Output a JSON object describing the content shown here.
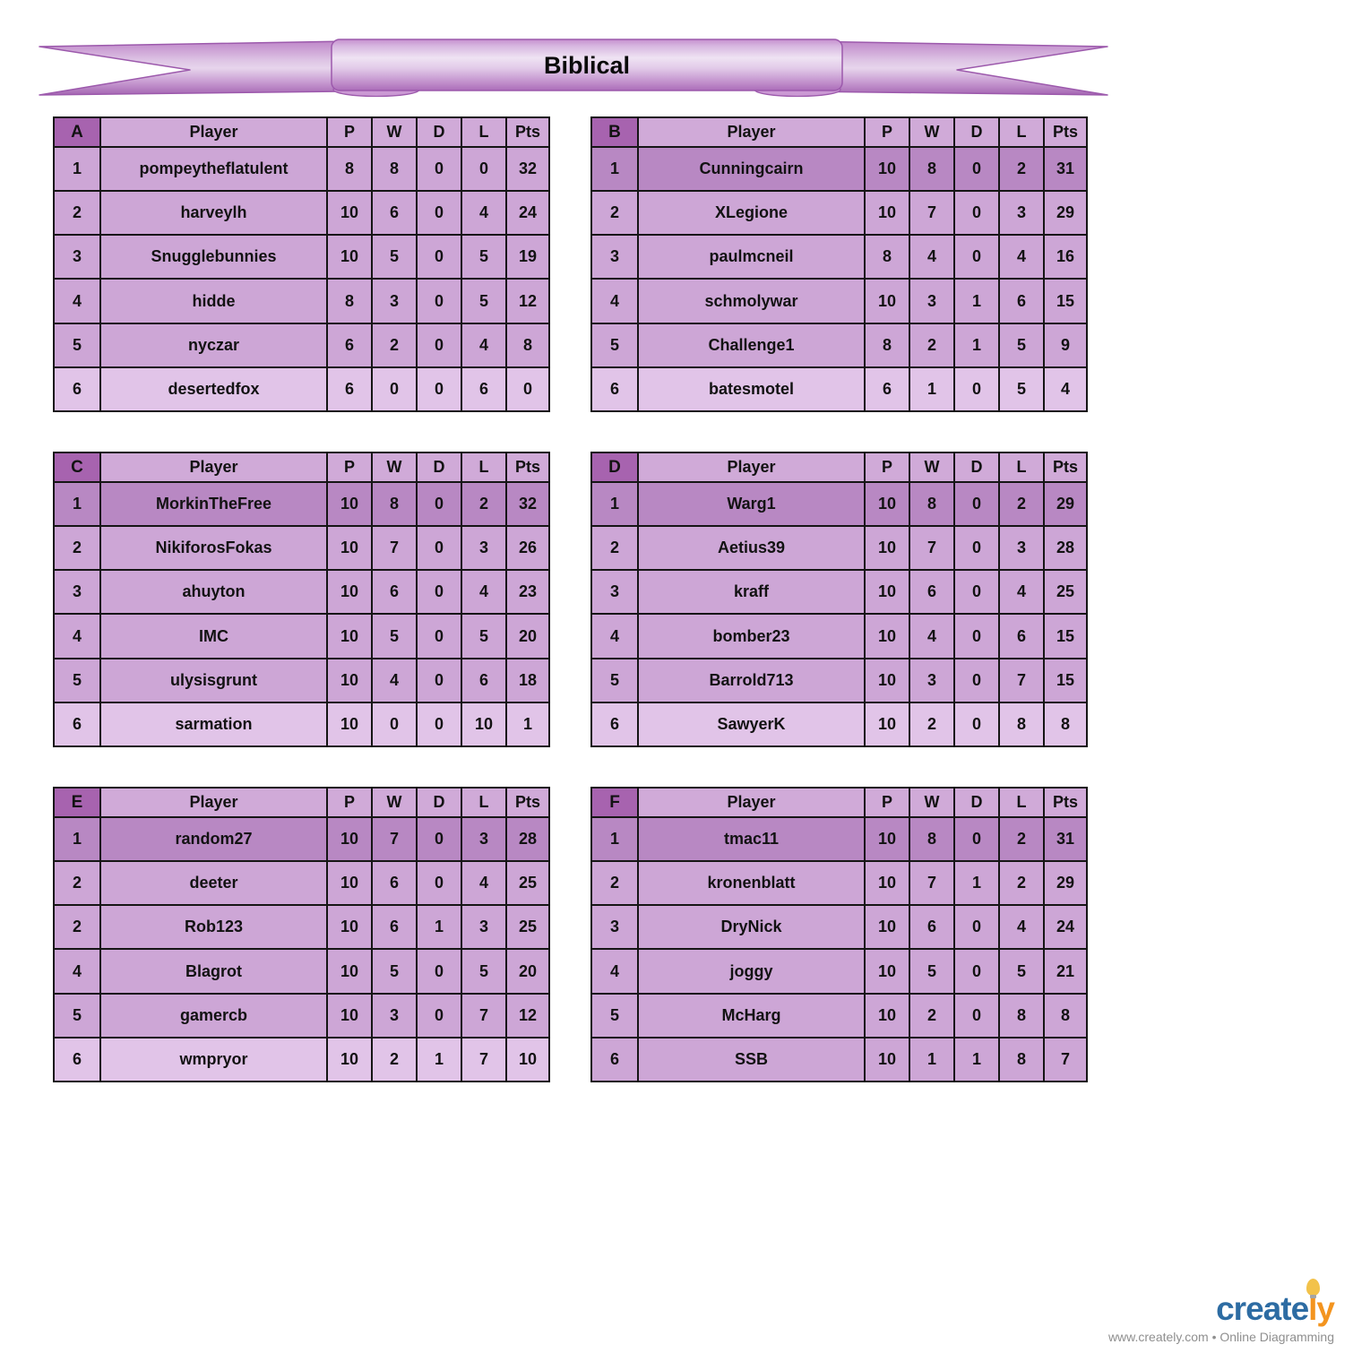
{
  "banner": {
    "title": "Biblical"
  },
  "columns": [
    "Player",
    "P",
    "W",
    "D",
    "L",
    "Pts"
  ],
  "groups": [
    {
      "letter": "A",
      "rows": [
        {
          "rank": "1",
          "player": "pompeytheflatulent",
          "stats": [
            "8",
            "8",
            "0",
            "0",
            "32"
          ],
          "shade": "normal"
        },
        {
          "rank": "2",
          "player": "harveylh",
          "stats": [
            "10",
            "6",
            "0",
            "4",
            "24"
          ],
          "shade": "normal"
        },
        {
          "rank": "3",
          "player": "Snugglebunnies",
          "stats": [
            "10",
            "5",
            "0",
            "5",
            "19"
          ],
          "shade": "normal"
        },
        {
          "rank": "4",
          "player": "hidde",
          "stats": [
            "8",
            "3",
            "0",
            "5",
            "12"
          ],
          "shade": "normal"
        },
        {
          "rank": "5",
          "player": "nyczar",
          "stats": [
            "6",
            "2",
            "0",
            "4",
            "8"
          ],
          "shade": "normal"
        },
        {
          "rank": "6",
          "player": "desertedfox",
          "stats": [
            "6",
            "0",
            "0",
            "6",
            "0"
          ],
          "shade": "light"
        }
      ]
    },
    {
      "letter": "B",
      "rows": [
        {
          "rank": "1",
          "player": "Cunningcairn",
          "stats": [
            "10",
            "8",
            "0",
            "2",
            "31"
          ],
          "shade": "dark"
        },
        {
          "rank": "2",
          "player": "XLegione",
          "stats": [
            "10",
            "7",
            "0",
            "3",
            "29"
          ],
          "shade": "normal"
        },
        {
          "rank": "3",
          "player": "paulmcneil",
          "stats": [
            "8",
            "4",
            "0",
            "4",
            "16"
          ],
          "shade": "normal"
        },
        {
          "rank": "4",
          "player": "schmolywar",
          "stats": [
            "10",
            "3",
            "1",
            "6",
            "15"
          ],
          "shade": "normal"
        },
        {
          "rank": "5",
          "player": "Challenge1",
          "stats": [
            "8",
            "2",
            "1",
            "5",
            "9"
          ],
          "shade": "normal"
        },
        {
          "rank": "6",
          "player": "batesmotel",
          "stats": [
            "6",
            "1",
            "0",
            "5",
            "4"
          ],
          "shade": "light"
        }
      ]
    },
    {
      "letter": "C",
      "rows": [
        {
          "rank": "1",
          "player": "MorkinTheFree",
          "stats": [
            "10",
            "8",
            "0",
            "2",
            "32"
          ],
          "shade": "dark"
        },
        {
          "rank": "2",
          "player": "NikiforosFokas",
          "stats": [
            "10",
            "7",
            "0",
            "3",
            "26"
          ],
          "shade": "normal"
        },
        {
          "rank": "3",
          "player": "ahuyton",
          "stats": [
            "10",
            "6",
            "0",
            "4",
            "23"
          ],
          "shade": "normal"
        },
        {
          "rank": "4",
          "player": "IMC",
          "stats": [
            "10",
            "5",
            "0",
            "5",
            "20"
          ],
          "shade": "normal"
        },
        {
          "rank": "5",
          "player": "ulysisgrunt",
          "stats": [
            "10",
            "4",
            "0",
            "6",
            "18"
          ],
          "shade": "normal"
        },
        {
          "rank": "6",
          "player": "sarmation",
          "stats": [
            "10",
            "0",
            "0",
            "10",
            "1"
          ],
          "shade": "light"
        }
      ]
    },
    {
      "letter": "D",
      "rows": [
        {
          "rank": "1",
          "player": "Warg1",
          "stats": [
            "10",
            "8",
            "0",
            "2",
            "29"
          ],
          "shade": "dark"
        },
        {
          "rank": "2",
          "player": "Aetius39",
          "stats": [
            "10",
            "7",
            "0",
            "3",
            "28"
          ],
          "shade": "normal"
        },
        {
          "rank": "3",
          "player": "kraff",
          "stats": [
            "10",
            "6",
            "0",
            "4",
            "25"
          ],
          "shade": "normal"
        },
        {
          "rank": "4",
          "player": "bomber23",
          "stats": [
            "10",
            "4",
            "0",
            "6",
            "15"
          ],
          "shade": "normal"
        },
        {
          "rank": "5",
          "player": "Barrold713",
          "stats": [
            "10",
            "3",
            "0",
            "7",
            "15"
          ],
          "shade": "normal"
        },
        {
          "rank": "6",
          "player": "SawyerK",
          "stats": [
            "10",
            "2",
            "0",
            "8",
            "8"
          ],
          "shade": "light"
        }
      ]
    },
    {
      "letter": "E",
      "rows": [
        {
          "rank": "1",
          "player": "random27",
          "stats": [
            "10",
            "7",
            "0",
            "3",
            "28"
          ],
          "shade": "dark"
        },
        {
          "rank": "2",
          "player": "deeter",
          "stats": [
            "10",
            "6",
            "0",
            "4",
            "25"
          ],
          "shade": "normal"
        },
        {
          "rank": "2",
          "player": "Rob123",
          "stats": [
            "10",
            "6",
            "1",
            "3",
            "25"
          ],
          "shade": "normal"
        },
        {
          "rank": "4",
          "player": "Blagrot",
          "stats": [
            "10",
            "5",
            "0",
            "5",
            "20"
          ],
          "shade": "normal"
        },
        {
          "rank": "5",
          "player": "gamercb",
          "stats": [
            "10",
            "3",
            "0",
            "7",
            "12"
          ],
          "shade": "normal"
        },
        {
          "rank": "6",
          "player": "wmpryor",
          "stats": [
            "10",
            "2",
            "1",
            "7",
            "10"
          ],
          "shade": "light"
        }
      ]
    },
    {
      "letter": "F",
      "rows": [
        {
          "rank": "1",
          "player": "tmac11",
          "stats": [
            "10",
            "8",
            "0",
            "2",
            "31"
          ],
          "shade": "dark"
        },
        {
          "rank": "2",
          "player": "kronenblatt",
          "stats": [
            "10",
            "7",
            "1",
            "2",
            "29"
          ],
          "shade": "normal"
        },
        {
          "rank": "3",
          "player": "DryNick",
          "stats": [
            "10",
            "6",
            "0",
            "4",
            "24"
          ],
          "shade": "normal"
        },
        {
          "rank": "4",
          "player": "joggy",
          "stats": [
            "10",
            "5",
            "0",
            "5",
            "21"
          ],
          "shade": "normal"
        },
        {
          "rank": "5",
          "player": "McHarg",
          "stats": [
            "10",
            "2",
            "0",
            "8",
            "8"
          ],
          "shade": "normal"
        },
        {
          "rank": "6",
          "player": "SSB",
          "stats": [
            "10",
            "1",
            "1",
            "8",
            "7"
          ],
          "shade": "normal"
        }
      ]
    }
  ],
  "footer": {
    "brand_blue_text": "create",
    "brand_orange_text": "ly",
    "bulb_icon": "lightbulb-icon",
    "tagline": "www.creately.com • Online Diagramming"
  },
  "colors": {
    "group_letter_bg": "#a763af",
    "header_bg": "#d0aad8",
    "row_normal_bg": "#cda6d6",
    "row_top_highlight_bg": "#b888c3",
    "row_bottom_light_bg": "#e1c4e8",
    "table_border": "#151515",
    "ribbon_border": "#9c59ac",
    "brand_blue": "#2d6ca3",
    "brand_orange": "#f3941f",
    "bulb_yellow": "#f2c24a"
  }
}
